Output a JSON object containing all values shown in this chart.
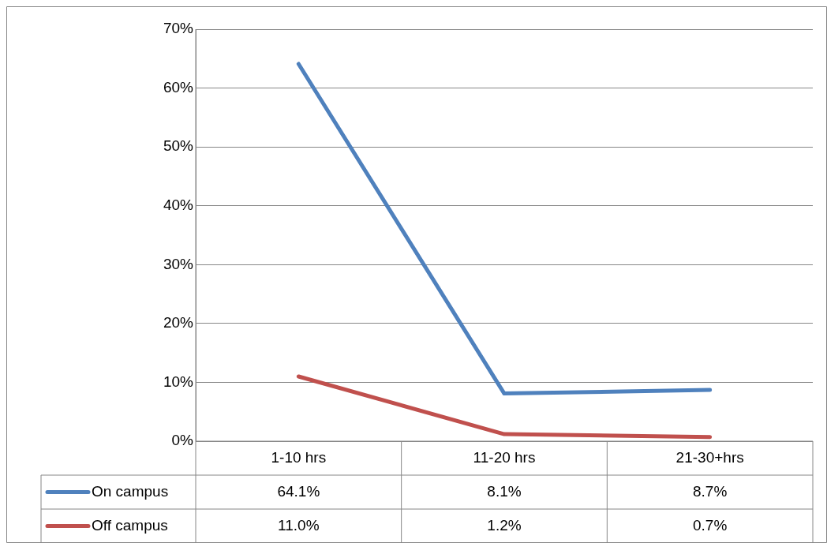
{
  "chart_data": {
    "type": "line",
    "categories": [
      "1-10 hrs",
      "11-20 hrs",
      "21-30+hrs"
    ],
    "series": [
      {
        "name": "On campus",
        "color": "#4f81bd",
        "values": [
          64.1,
          8.1,
          8.7
        ],
        "value_labels": [
          "64.1%",
          "8.1%",
          "8.7%"
        ]
      },
      {
        "name": "Off campus",
        "color": "#c0504d",
        "values": [
          11.0,
          1.2,
          0.7
        ],
        "value_labels": [
          "11.0%",
          "1.2%",
          "0.7%"
        ]
      }
    ],
    "ylim": [
      0,
      70
    ],
    "yticks": [
      {
        "value": 0,
        "label": "0%"
      },
      {
        "value": 10,
        "label": "10%"
      },
      {
        "value": 20,
        "label": "20%"
      },
      {
        "value": 30,
        "label": "30%"
      },
      {
        "value": 40,
        "label": "40%"
      },
      {
        "value": 50,
        "label": "50%"
      },
      {
        "value": 60,
        "label": "60%"
      },
      {
        "value": 70,
        "label": "70%"
      }
    ],
    "grid": "y",
    "legend": "bottom left",
    "marker": "none",
    "line_style": "solid"
  }
}
